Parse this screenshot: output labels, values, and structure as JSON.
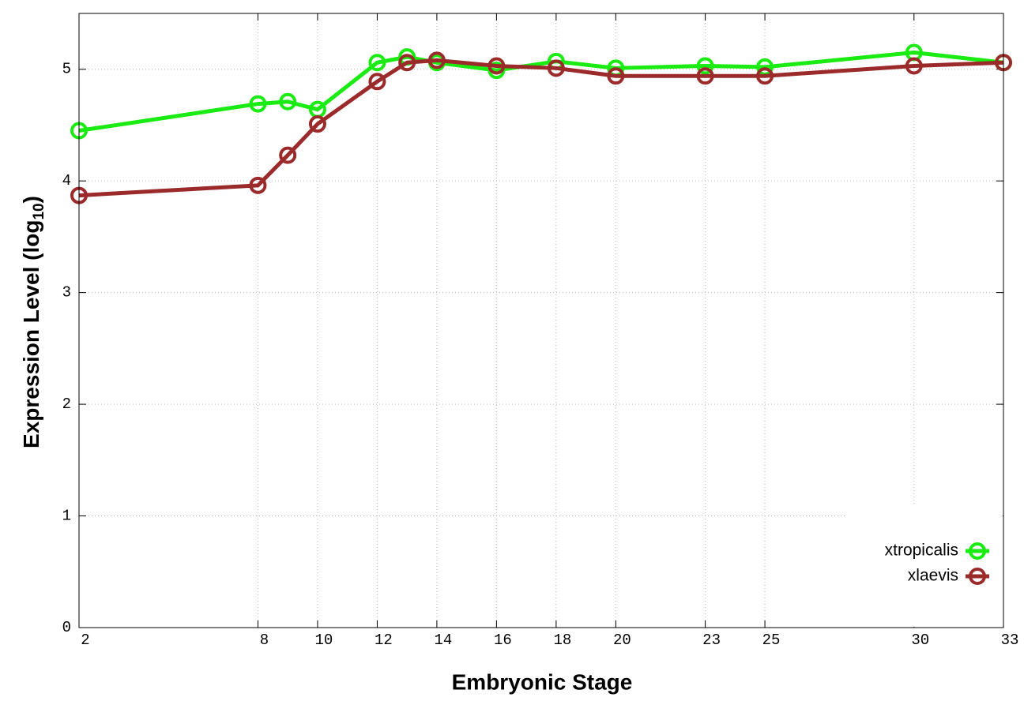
{
  "chart_data": {
    "type": "line",
    "x_label": "Embryonic Stage",
    "y_label_parts": [
      "Expression Level (log",
      "10",
      ")"
    ],
    "x": [
      2,
      8,
      9,
      10,
      12,
      13,
      14,
      16,
      18,
      20,
      23,
      25,
      30,
      33
    ],
    "series": [
      {
        "name": "xtropicalis",
        "color": "#1aeb12",
        "values": [
          4.45,
          4.69,
          4.71,
          4.64,
          5.06,
          5.11,
          5.06,
          4.99,
          5.07,
          5.01,
          5.03,
          5.02,
          5.15,
          5.06
        ]
      },
      {
        "name": "xlaevis",
        "color": "#9b2a2a",
        "values": [
          3.87,
          3.96,
          4.23,
          4.51,
          4.89,
          5.06,
          5.08,
          5.03,
          5.01,
          4.94,
          4.94,
          4.94,
          5.03,
          5.06
        ]
      }
    ],
    "xlim": [
      2,
      33
    ],
    "xticks": [
      2,
      8,
      10,
      12,
      14,
      16,
      18,
      20,
      23,
      25,
      30,
      33
    ],
    "ylim": [
      0,
      5.5
    ],
    "yticks": [
      0,
      1,
      2,
      3,
      4,
      5
    ],
    "grid": true,
    "legend": "bottom-right"
  }
}
